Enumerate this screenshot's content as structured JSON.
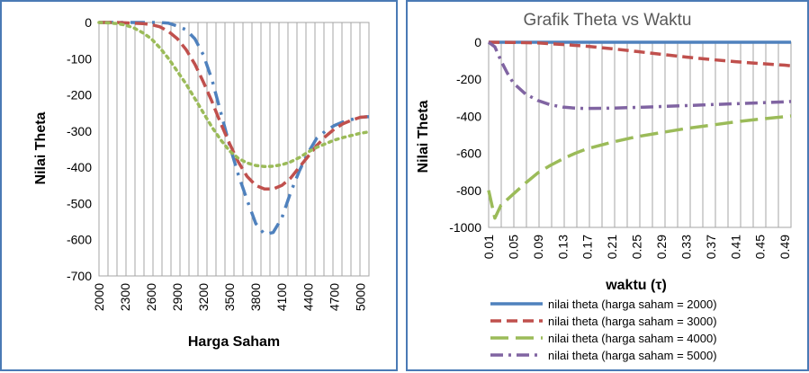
{
  "chart_data": [
    {
      "type": "line",
      "title": "",
      "xlabel": "Harga Saham",
      "ylabel": "Nilai Theta",
      "ylim": [
        -700,
        0
      ],
      "yticks": [
        "0",
        "-100",
        "-200",
        "-300",
        "-400",
        "-500",
        "-600",
        "-700"
      ],
      "xlim": [
        2000,
        5100
      ],
      "xticks": [
        "2000",
        "2300",
        "2600",
        "2900",
        "3200",
        "3500",
        "3800",
        "4100",
        "4400",
        "4700",
        "5000"
      ],
      "grid": "vertical",
      "legend": "none",
      "colors": [
        "#4f81bd",
        "#c0504d",
        "#9bbb59"
      ],
      "series": [
        {
          "x": [
            2000,
            2100,
            2200,
            2300,
            2400,
            2500,
            2600,
            2700,
            2800,
            2900,
            3000,
            3100,
            3200,
            3300,
            3400,
            3500,
            3600,
            3700,
            3800,
            3900,
            4000,
            4100,
            4200,
            4300,
            4400,
            4500,
            4600,
            4700,
            4800,
            4900,
            5000,
            5100
          ],
          "values": [
            0,
            0,
            0,
            0,
            0,
            0,
            0,
            0,
            -2,
            -10,
            -20,
            -45,
            -90,
            -160,
            -250,
            -340,
            -420,
            -490,
            -555,
            -585,
            -580,
            -540,
            -470,
            -410,
            -360,
            -320,
            -300,
            -285,
            -275,
            -268,
            -262,
            -260
          ]
        },
        {
          "x": [
            2000,
            2100,
            2200,
            2300,
            2400,
            2500,
            2600,
            2700,
            2800,
            2900,
            3000,
            3100,
            3200,
            3300,
            3400,
            3500,
            3600,
            3700,
            3800,
            3900,
            4000,
            4100,
            4200,
            4300,
            4400,
            4500,
            4600,
            4700,
            4800,
            4900,
            5000,
            5100
          ],
          "values": [
            0,
            0,
            0,
            -1,
            -2,
            -3,
            -6,
            -12,
            -25,
            -45,
            -75,
            -115,
            -165,
            -220,
            -280,
            -335,
            -385,
            -425,
            -450,
            -460,
            -460,
            -450,
            -430,
            -400,
            -370,
            -340,
            -315,
            -295,
            -280,
            -270,
            -262,
            -260
          ]
        },
        {
          "x": [
            2000,
            2100,
            2200,
            2300,
            2400,
            2500,
            2600,
            2700,
            2800,
            2900,
            3000,
            3100,
            3200,
            3300,
            3400,
            3500,
            3600,
            3700,
            3800,
            3900,
            4000,
            4100,
            4200,
            4300,
            4400,
            4500,
            4600,
            4700,
            4800,
            4900,
            5000,
            5100
          ],
          "values": [
            0,
            -1,
            -3,
            -7,
            -15,
            -28,
            -45,
            -70,
            -100,
            -135,
            -170,
            -210,
            -250,
            -290,
            -325,
            -355,
            -375,
            -388,
            -395,
            -398,
            -397,
            -393,
            -385,
            -373,
            -358,
            -345,
            -335,
            -325,
            -318,
            -312,
            -306,
            -302
          ]
        }
      ]
    },
    {
      "type": "line",
      "title": "Grafik Theta vs Waktu",
      "xlabel": "waktu (τ)",
      "ylabel": "Nilai Theta",
      "ylim": [
        -1000,
        0
      ],
      "yticks": [
        "0",
        "-200",
        "-400",
        "-600",
        "-800",
        "-1000"
      ],
      "xlim": [
        0.01,
        0.5
      ],
      "xticks": [
        "0.01",
        "0.05",
        "0.09",
        "0.13",
        "0.17",
        "0.21",
        "0.25",
        "0.29",
        "0.33",
        "0.37",
        "0.41",
        "0.45",
        "0.49"
      ],
      "grid": "vertical",
      "legend": "bottom",
      "colors": [
        "#4f81bd",
        "#c0504d",
        "#9bbb59",
        "#8064a2"
      ],
      "series": [
        {
          "name": "nilai theta (harga saham = 2000)",
          "x": [
            0.01,
            0.05,
            0.09,
            0.13,
            0.17,
            0.21,
            0.25,
            0.29,
            0.33,
            0.37,
            0.41,
            0.45,
            0.49,
            0.5
          ],
          "values": [
            0,
            0,
            0,
            0,
            0,
            0,
            0,
            0,
            0,
            0,
            0,
            0,
            0,
            0
          ]
        },
        {
          "name": "nilai theta (harga saham = 3000)",
          "x": [
            0.01,
            0.05,
            0.09,
            0.13,
            0.17,
            0.21,
            0.25,
            0.29,
            0.33,
            0.37,
            0.41,
            0.45,
            0.49,
            0.5
          ],
          "values": [
            0,
            -1,
            -4,
            -12,
            -22,
            -35,
            -50,
            -65,
            -80,
            -93,
            -105,
            -115,
            -124,
            -127
          ]
        },
        {
          "name": "nilai theta (harga saham = 4000)",
          "x": [
            0.01,
            0.02,
            0.03,
            0.05,
            0.07,
            0.09,
            0.11,
            0.13,
            0.15,
            0.17,
            0.21,
            0.25,
            0.29,
            0.33,
            0.37,
            0.41,
            0.45,
            0.49,
            0.5
          ],
          "values": [
            -800,
            -950,
            -880,
            -820,
            -760,
            -705,
            -665,
            -630,
            -600,
            -575,
            -540,
            -510,
            -488,
            -466,
            -448,
            -430,
            -415,
            -402,
            -398
          ]
        },
        {
          "name": "nilai theta (harga saham = 5000)",
          "x": [
            0.01,
            0.02,
            0.03,
            0.04,
            0.05,
            0.07,
            0.09,
            0.11,
            0.13,
            0.15,
            0.17,
            0.21,
            0.25,
            0.29,
            0.33,
            0.37,
            0.41,
            0.45,
            0.49,
            0.5
          ],
          "values": [
            0,
            -25,
            -100,
            -165,
            -220,
            -280,
            -315,
            -338,
            -350,
            -356,
            -358,
            -356,
            -352,
            -347,
            -342,
            -337,
            -332,
            -327,
            -322,
            -320
          ]
        }
      ]
    }
  ]
}
